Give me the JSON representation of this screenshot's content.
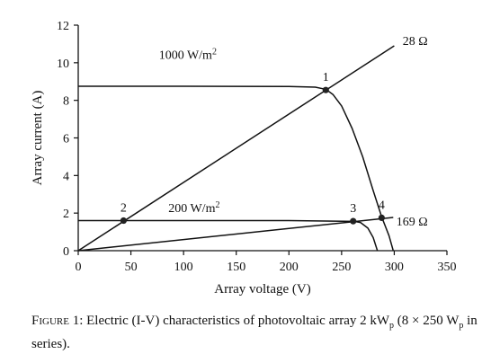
{
  "chart_data": {
    "type": "line",
    "xlabel": "Array voltage (V)",
    "ylabel": "Array current (A)",
    "xlim": [
      0,
      350
    ],
    "ylim": [
      0,
      12
    ],
    "xticks": [
      "0",
      "50",
      "100",
      "150",
      "200",
      "250",
      "300",
      "350"
    ],
    "yticks": [
      "0",
      "2",
      "4",
      "6",
      "8",
      "10",
      "12"
    ],
    "grid": false,
    "series": [
      {
        "name": "1000 W/m2",
        "label_base": "1000 W/m",
        "label_sup": "2",
        "x": [
          0,
          100,
          200,
          225,
          232,
          236,
          242,
          250,
          260,
          270,
          280,
          288,
          295,
          299
        ],
        "y": [
          8.75,
          8.75,
          8.74,
          8.7,
          8.62,
          8.55,
          8.3,
          7.7,
          6.5,
          5.0,
          3.2,
          1.8,
          0.8,
          0
        ]
      },
      {
        "name": "200 W/m2",
        "label_base": "200 W/m",
        "label_sup": "2",
        "x": [
          0,
          100,
          200,
          262,
          268,
          275,
          280,
          284
        ],
        "y": [
          1.6,
          1.6,
          1.6,
          1.56,
          1.5,
          1.2,
          0.7,
          0
        ]
      },
      {
        "name": "28 Ω",
        "label": "28 Ω",
        "x": [
          0,
          300
        ],
        "y": [
          0,
          10.9
        ]
      },
      {
        "name": "169 Ω",
        "label": "169 Ω",
        "x": [
          0,
          299
        ],
        "y": [
          0,
          1.77
        ]
      }
    ],
    "points": [
      {
        "label": "1",
        "x": 235,
        "y": 8.55
      },
      {
        "label": "2",
        "x": 43,
        "y": 1.6
      },
      {
        "label": "3",
        "x": 261,
        "y": 1.57
      },
      {
        "label": "4",
        "x": 288,
        "y": 1.75
      }
    ]
  },
  "caption": {
    "figure_label": "Figure 1:",
    "text_part1": " Electric (I-V) characteristics of photovoltaic array 2 kW",
    "sub1": "p",
    "text_part2": " (8 × 250 W",
    "sub2": "p",
    "text_part3": " in series)."
  }
}
